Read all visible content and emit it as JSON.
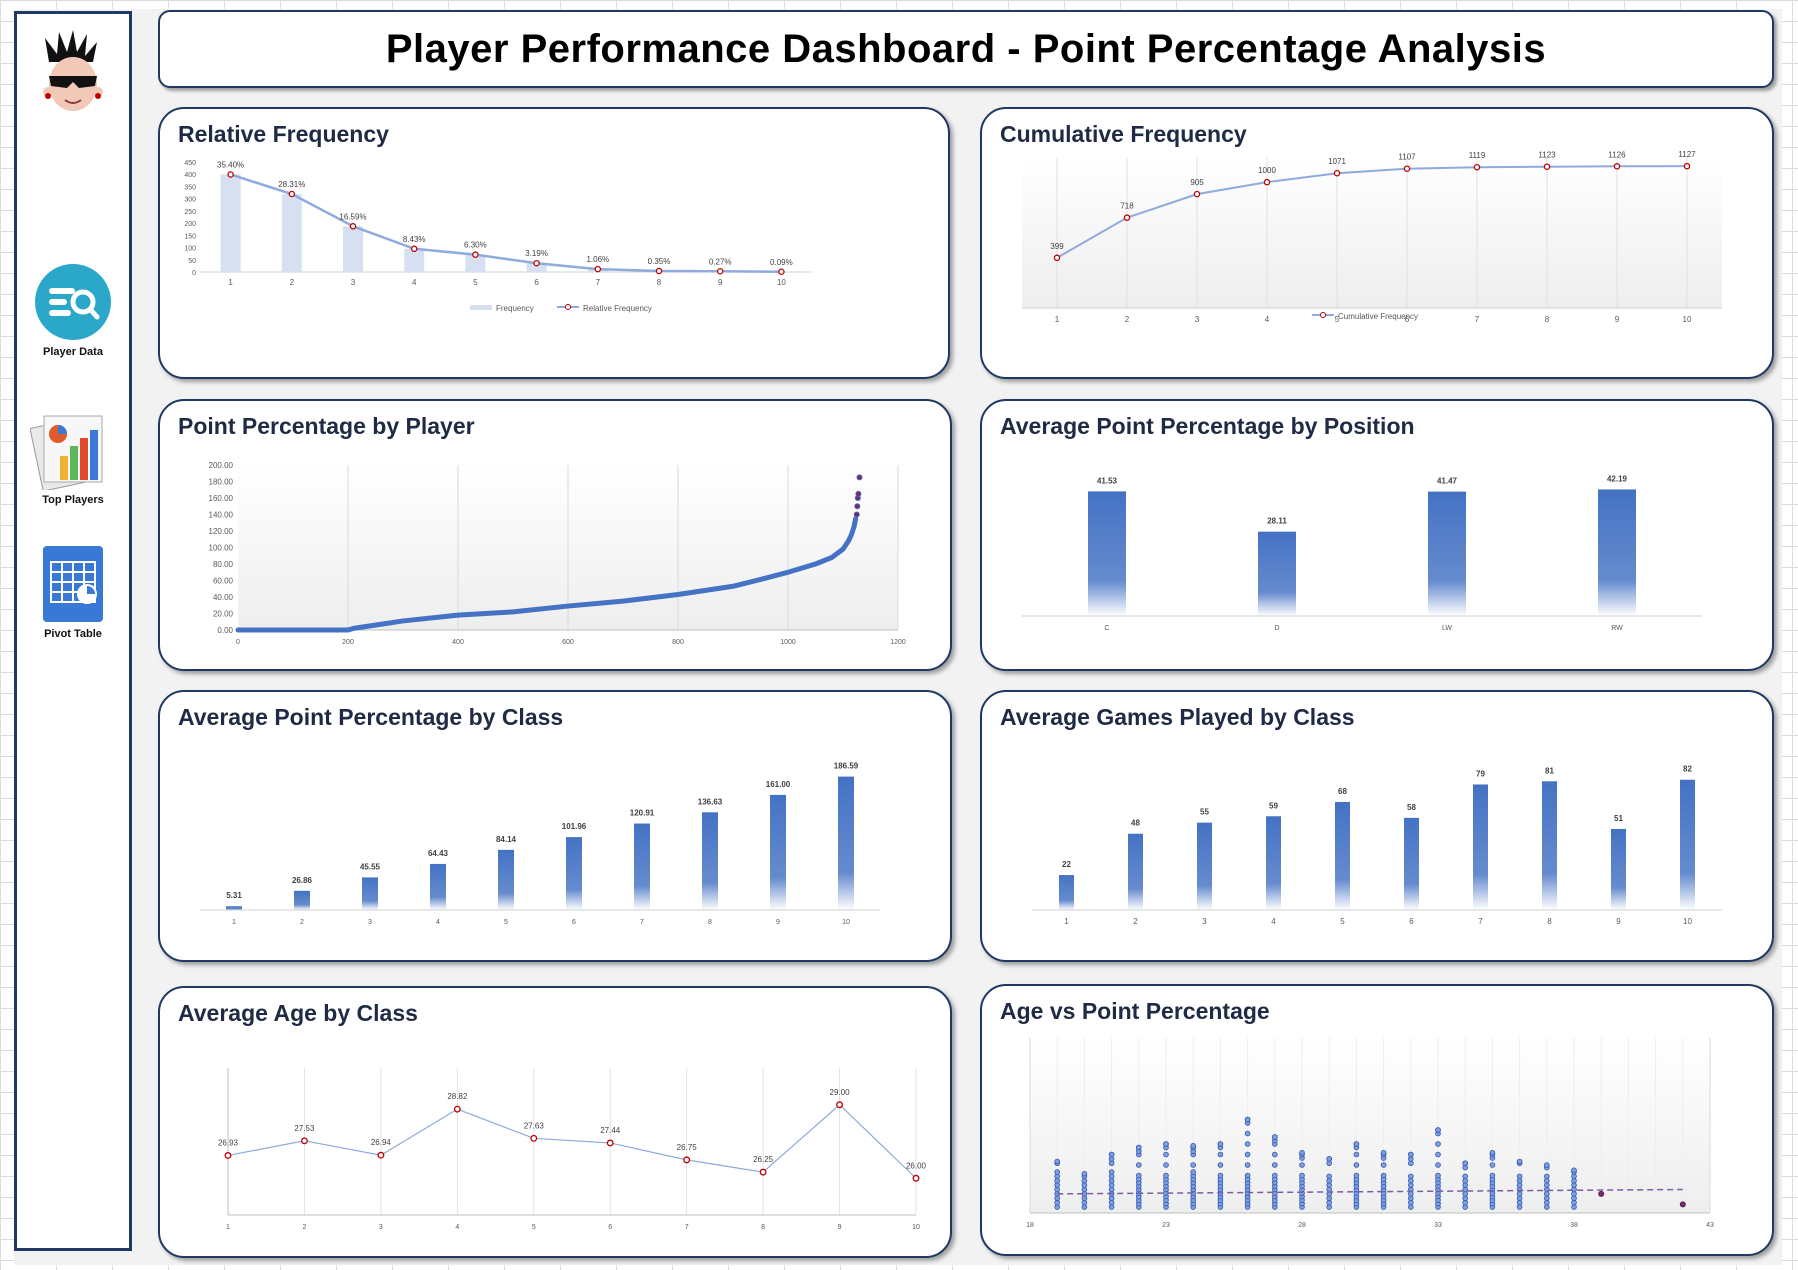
{
  "title": "Player Performance Dashboard - Point Percentage Analysis",
  "sidebar": {
    "items": [
      {
        "label": "Player Data",
        "icon": "search-list-icon"
      },
      {
        "label": "Top Players",
        "icon": "chart-report-icon"
      },
      {
        "label": "Pivot Table",
        "icon": "pivot-table-icon"
      }
    ]
  },
  "colors": {
    "navy": "#1f3864",
    "bar_blue": "#4472c4",
    "light_bar": "#d6e0f0",
    "line_blue": "#8faadc",
    "marker_red": "#c00000",
    "trend_purple": "#7b5ea7"
  },
  "chart_data": [
    {
      "id": "relative-frequency",
      "type": "bar",
      "title": "Relative Frequency",
      "categories": [
        "1",
        "2",
        "3",
        "4",
        "5",
        "6",
        "7",
        "8",
        "9",
        "10"
      ],
      "series": [
        {
          "name": "Frequency",
          "type": "bar",
          "values": [
            399,
            319,
            187,
            95,
            71,
            36,
            12,
            4,
            3,
            1
          ]
        },
        {
          "name": "Relative Frequency",
          "type": "line",
          "values": [
            35.4,
            28.31,
            16.59,
            8.43,
            6.3,
            3.19,
            1.06,
            0.35,
            0.27,
            0.09
          ]
        }
      ],
      "data_labels": [
        "35.40%",
        "28.31%",
        "16.59%",
        "8.43%",
        "6.30%",
        "3.19%",
        "1.06%",
        "0.35%",
        "0.27%",
        "0.09%"
      ],
      "y_ticks": [
        "450",
        "400",
        "350",
        "300",
        "250",
        "200",
        "150",
        "100",
        "50",
        "0"
      ],
      "ylim": [
        0,
        450
      ]
    },
    {
      "id": "cumulative-frequency",
      "type": "line",
      "title": "Cumulative Frequency",
      "categories": [
        "1",
        "2",
        "3",
        "4",
        "5",
        "6",
        "7",
        "8",
        "9",
        "10"
      ],
      "series": [
        {
          "name": "Cumulative Frequency",
          "values": [
            399,
            718,
            905,
            1000,
            1071,
            1107,
            1119,
            1123,
            1126,
            1127
          ]
        }
      ],
      "ylim": [
        0,
        1200
      ]
    },
    {
      "id": "point-pct-by-player",
      "type": "scatter",
      "title": "Point Percentage by Player",
      "x_ticks": [
        "0",
        "200",
        "400",
        "600",
        "800",
        "1000",
        "1200"
      ],
      "y_ticks": [
        "200.00",
        "180.00",
        "160.00",
        "140.00",
        "120.00",
        "100.00",
        "80.00",
        "60.00",
        "40.00",
        "20.00",
        "0.00"
      ],
      "xlim": [
        0,
        1200
      ],
      "ylim": [
        0,
        200
      ],
      "curve_points": [
        [
          0,
          0
        ],
        [
          200,
          0
        ],
        [
          210,
          2
        ],
        [
          260,
          7
        ],
        [
          300,
          11
        ],
        [
          400,
          18
        ],
        [
          500,
          22
        ],
        [
          600,
          29
        ],
        [
          700,
          35
        ],
        [
          800,
          43
        ],
        [
          900,
          53
        ],
        [
          960,
          63
        ],
        [
          1000,
          70
        ],
        [
          1050,
          80
        ],
        [
          1080,
          88
        ],
        [
          1100,
          98
        ],
        [
          1110,
          108
        ],
        [
          1115,
          115
        ],
        [
          1120,
          125
        ],
        [
          1123,
          135
        ]
      ],
      "outliers": [
        [
          1125,
          140
        ],
        [
          1126,
          150
        ],
        [
          1127,
          160
        ],
        [
          1128,
          165
        ],
        [
          1130,
          185
        ]
      ]
    },
    {
      "id": "avg-point-pct-by-position",
      "type": "bar",
      "title": "Average Point Percentage by Position",
      "categories": [
        "C",
        "D",
        "LW",
        "RW"
      ],
      "values": [
        41.53,
        28.11,
        41.47,
        42.19
      ],
      "labels": [
        "41.53",
        "28.11",
        "41.47",
        "42.19"
      ],
      "ylim": [
        0,
        50
      ]
    },
    {
      "id": "avg-point-pct-by-class",
      "type": "bar",
      "title": "Average Point Percentage by Class",
      "categories": [
        "1",
        "2",
        "3",
        "4",
        "5",
        "6",
        "7",
        "8",
        "9",
        "10"
      ],
      "values": [
        5.31,
        26.86,
        45.55,
        64.43,
        84.14,
        101.96,
        120.91,
        136.63,
        161.0,
        186.59
      ],
      "labels": [
        "5.31",
        "26.86",
        "45.55",
        "64.43",
        "84.14",
        "101.96",
        "120.91",
        "136.63",
        "161.00",
        "186.59"
      ],
      "ylim": [
        0,
        200
      ]
    },
    {
      "id": "avg-games-by-class",
      "type": "bar",
      "title": "Average Games Played by Class",
      "categories": [
        "1",
        "2",
        "3",
        "4",
        "5",
        "6",
        "7",
        "8",
        "9",
        "10"
      ],
      "values": [
        22,
        48,
        55,
        59,
        68,
        58,
        79,
        81,
        51,
        82
      ],
      "labels": [
        "22",
        "48",
        "55",
        "59",
        "68",
        "58",
        "79",
        "81",
        "51",
        "82"
      ],
      "ylim": [
        0,
        90
      ]
    },
    {
      "id": "avg-age-by-class",
      "type": "line",
      "title": "Average Age by Class",
      "categories": [
        "1",
        "2",
        "3",
        "4",
        "5",
        "6",
        "7",
        "8",
        "9",
        "10"
      ],
      "values": [
        26.93,
        27.53,
        26.94,
        28.82,
        27.63,
        27.44,
        26.75,
        26.25,
        29.0,
        26.0
      ],
      "labels": [
        "26.93",
        "27.53",
        "26.94",
        "28.82",
        "27.63",
        "27.44",
        "26.75",
        "26.25",
        "29.00",
        "26.00"
      ],
      "ylim": [
        24.5,
        30.5
      ]
    },
    {
      "id": "age-vs-point-pct",
      "type": "scatter",
      "title": "Age vs Point Percentage",
      "x_ticks": [
        "18",
        "23",
        "28",
        "33",
        "38",
        "43"
      ],
      "xlim": [
        18,
        43
      ],
      "ylim": [
        0,
        200
      ],
      "columns": [
        [
          19,
          10,
          52
        ],
        [
          20,
          5,
          38
        ],
        [
          21,
          8,
          60
        ],
        [
          22,
          5,
          68
        ],
        [
          23,
          5,
          72
        ],
        [
          24,
          8,
          70
        ],
        [
          25,
          5,
          72
        ],
        [
          26,
          5,
          100
        ],
        [
          27,
          5,
          80
        ],
        [
          28,
          5,
          62
        ],
        [
          29,
          5,
          55
        ],
        [
          30,
          5,
          72
        ],
        [
          31,
          5,
          62
        ],
        [
          32,
          5,
          60
        ],
        [
          33,
          5,
          88
        ],
        [
          34,
          5,
          50
        ],
        [
          35,
          5,
          62
        ],
        [
          36,
          5,
          52
        ],
        [
          37,
          5,
          48
        ],
        [
          38,
          5,
          42
        ]
      ],
      "highlight_points": [
        [
          39,
          15
        ],
        [
          42,
          3
        ]
      ],
      "trend": [
        [
          19,
          15
        ],
        [
          42,
          20
        ]
      ]
    }
  ]
}
